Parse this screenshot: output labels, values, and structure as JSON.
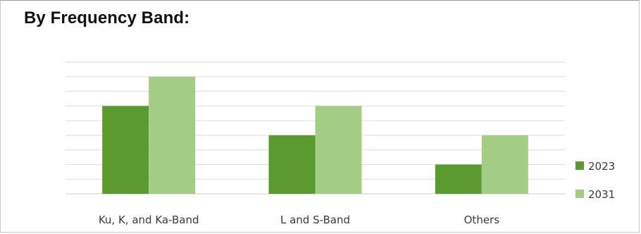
{
  "title": "By Frequency Band:",
  "chart_data": {
    "type": "bar",
    "title": "By Frequency Band:",
    "categories": [
      "Ku, K, and Ka-Band",
      "L and S-Band",
      "Others"
    ],
    "series": [
      {
        "name": "2023",
        "values": [
          6,
          4,
          2
        ],
        "color": "#5a9a2e"
      },
      {
        "name": "2031",
        "values": [
          8,
          6,
          4
        ],
        "color": "#a3cd85"
      }
    ],
    "ylim": [
      0,
      9
    ],
    "grid": true,
    "legend": "right",
    "xlabel": "",
    "ylabel": ""
  }
}
